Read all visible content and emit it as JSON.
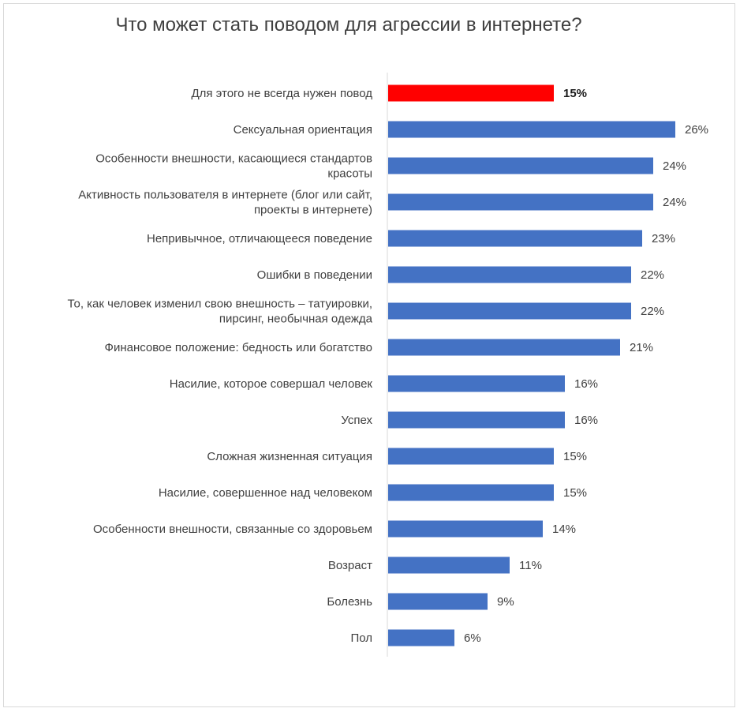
{
  "chart_data": {
    "type": "bar",
    "orientation": "horizontal",
    "title": "Что может стать поводом для агрессии в интернете?",
    "xlabel": "",
    "ylabel": "",
    "grid": false,
    "legend": "none",
    "xlim": [
      0,
      26
    ],
    "categories": [
      "Для этого не всегда нужен повод",
      "Сексуальная ориентация",
      "Особенности внешности, касающиеся стандартов красоты",
      "Активность пользователя в интернете (блог или сайт, проекты в интернете)",
      "Непривычное, отличающееся поведение",
      "Ошибки в поведении",
      "То, как человек изменил свою внешность – татуировки, пирсинг, необычная одежда",
      "Финансовое положение: бедность или богатство",
      "Насилие, которое совершал человек",
      "Успех",
      "Сложная жизненная ситуация",
      "Насилие, совершенное над человеком",
      "Особенности внешности, связанные со здоровьем",
      "Возраст",
      "Болезнь",
      "Пол"
    ],
    "label_lines": [
      [
        "Для этого не всегда нужен повод"
      ],
      [
        "Сексуальная ориентация"
      ],
      [
        "Особенности внешности, касающиеся стандартов",
        "красоты"
      ],
      [
        "Активность пользователя в интернете (блог или сайт,",
        "проекты в интернете)"
      ],
      [
        "Непривычное, отличающееся поведение"
      ],
      [
        "Ошибки в поведении"
      ],
      [
        "То, как человек изменил свою внешность – татуировки,",
        "пирсинг, необычная одежда"
      ],
      [
        "Финансовое положение: бедность или богатство"
      ],
      [
        "Насилие, которое совершал человек"
      ],
      [
        "Успех"
      ],
      [
        "Сложная жизненная ситуация"
      ],
      [
        "Насилие, совершенное над человеком"
      ],
      [
        "Особенности внешности, связанные со здоровьем"
      ],
      [
        "Возраст"
      ],
      [
        "Болезнь"
      ],
      [
        "Пол"
      ]
    ],
    "values": [
      15,
      26,
      24,
      24,
      23,
      22,
      22,
      21,
      16,
      16,
      15,
      15,
      14,
      11,
      9,
      6
    ],
    "value_labels": [
      "15%",
      "26%",
      "24%",
      "24%",
      "23%",
      "22%",
      "22%",
      "21%",
      "16%",
      "16%",
      "15%",
      "15%",
      "14%",
      "11%",
      "9%",
      "6%"
    ],
    "highlight_index": 0,
    "colors": {
      "bar": "#4472c4",
      "highlight": "#ff0000",
      "axis": "#d9d9d9",
      "text": "#404040"
    }
  }
}
